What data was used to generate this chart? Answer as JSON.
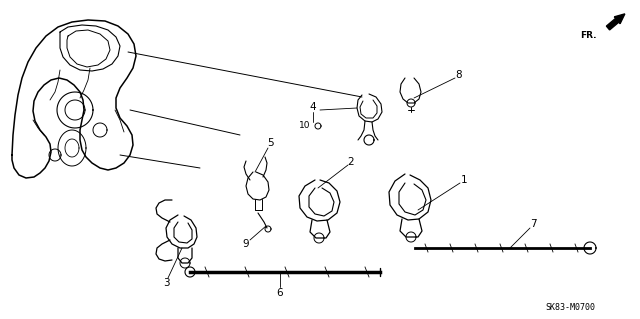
{
  "background_color": "#ffffff",
  "line_color": "#000000",
  "diagram_code": "SK83-M0700",
  "figsize": [
    6.4,
    3.19
  ],
  "dpi": 100
}
